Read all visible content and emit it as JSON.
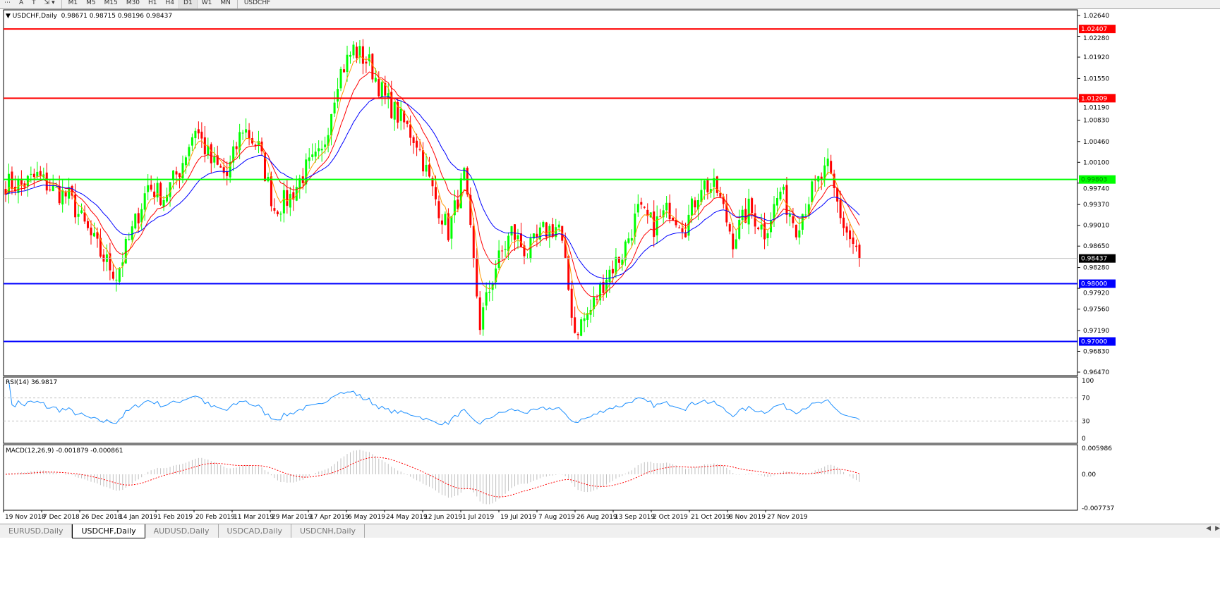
{
  "toolbar": {
    "items": [
      "A",
      "T"
    ],
    "timeframes": [
      "M1",
      "M5",
      "M15",
      "M30",
      "H1",
      "H4",
      "D1",
      "W1",
      "MN"
    ],
    "selected": "D1"
  },
  "chart_header": {
    "symbol": "USDCHF,Daily",
    "ohlc": "0.98671 0.98715 0.98196 0.98437"
  },
  "tabs": [
    {
      "label": "EURUSD,Daily",
      "active": false
    },
    {
      "label": "USDCHF,Daily",
      "active": true
    },
    {
      "label": "AUDUSD,Daily",
      "active": false
    },
    {
      "label": "USDCAD,Daily",
      "active": false
    },
    {
      "label": "USDCNH,Daily",
      "active": false
    }
  ],
  "rsi": {
    "label": "RSI(14) 36.9817",
    "levels": [
      70,
      30
    ],
    "axis_ticks": [
      "100",
      "70",
      "30",
      "0"
    ]
  },
  "macd": {
    "label": "MACD(12,26,9) -0.001879 -0.000861",
    "axis_ticks": [
      "0.005986",
      "0.00",
      "-0.007737"
    ]
  },
  "colors": {
    "bull": "#00ff00",
    "bear": "#ff0000",
    "ma_fast": "#ff9900",
    "ma_mid": "#ff0000",
    "ma_slow": "#0000ff",
    "rsi": "#1e90ff",
    "macd_hist": "#c0c0c0",
    "macd_signal": "#ff0000"
  },
  "chart_data": {
    "type": "candlestick",
    "symbol": "USDCHF",
    "timeframe": "Daily",
    "ylim": [
      0.9647,
      1.0264
    ],
    "price_ticks": [
      "1.02640",
      "1.02280",
      "1.01920",
      "1.01550",
      "1.01190",
      "1.00830",
      "1.00460",
      "1.00100",
      "0.99740",
      "0.99370",
      "0.99010",
      "0.98650",
      "0.98280",
      "0.97920",
      "0.97560",
      "0.97190",
      "0.96830",
      "0.96470"
    ],
    "x_tick_labels": [
      "19 Nov 2018",
      "7 Dec 2018",
      "26 Dec 2018",
      "14 Jan 2019",
      "1 Feb 2019",
      "20 Feb 2019",
      "11 Mar 2019",
      "29 Mar 2019",
      "17 Apr 2019",
      "6 May 2019",
      "24 May 2019",
      "12 Jun 2019",
      "1 Jul 2019",
      "19 Jul 2019",
      "7 Aug 2019",
      "26 Aug 2019",
      "13 Sep 2019",
      "2 Oct 2019",
      "21 Oct 2019",
      "8 Nov 2019",
      "27 Nov 2019"
    ],
    "weekly_closes_approx": [
      0.9974,
      0.997,
      0.9986,
      0.9962,
      0.995,
      0.99,
      0.9852,
      0.9815,
      0.989,
      0.997,
      0.995,
      0.9998,
      1.0071,
      1.001,
      0.9986,
      1.0071,
      1.0035,
      0.993,
      0.995,
      0.9998,
      1.0023,
      1.0157,
      1.0206,
      1.0181,
      1.012,
      1.0084,
      1.0047,
      0.996,
      0.989,
      0.9986,
      0.973,
      0.983,
      0.989,
      0.9852,
      0.989,
      0.99,
      0.9717,
      0.9754,
      0.9815,
      0.9852,
      0.9925,
      0.99,
      0.993,
      0.99,
      0.9974,
      0.996,
      0.9877,
      0.993,
      0.989,
      0.996,
      0.99,
      0.996,
      0.9998,
      0.99,
      0.98437
    ],
    "last_price": "0.98437",
    "horizontal_lines": [
      {
        "value": "1.02407",
        "color": "#ff0000"
      },
      {
        "value": "1.01209",
        "color": "#ff0000"
      },
      {
        "value": "0.99803",
        "color": "#00ff00"
      },
      {
        "value": "0.98000",
        "color": "#0000ff"
      },
      {
        "value": "0.97000",
        "color": "#0000ff"
      }
    ]
  }
}
